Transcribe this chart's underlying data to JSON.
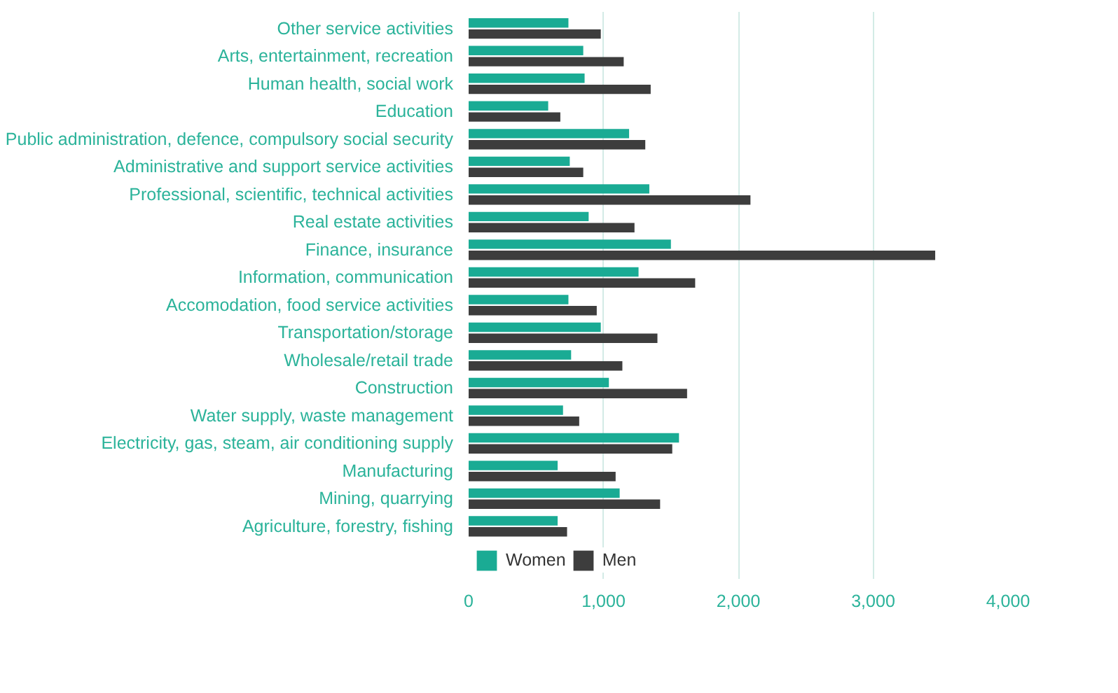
{
  "chart_data": {
    "type": "bar",
    "orientation": "horizontal",
    "categories": [
      "Other service activities",
      "Arts, entertainment, recreation",
      "Human health, social work",
      "Education",
      "Public administration, defence, compulsory social security",
      "Administrative and support service activities",
      "Professional, scientific, technical activities",
      "Real estate activities",
      "Finance, insurance",
      "Information, communication",
      "Accomodation, food service activities",
      "Transportation/storage",
      "Wholesale/retail trade",
      "Construction",
      "Water supply, waste management",
      "Electricity, gas, steam, air conditioning supply",
      "Manufacturing",
      "Mining, quarrying",
      "Agriculture, forestry, fishing"
    ],
    "series": [
      {
        "name": "Women",
        "color": "#1aab94",
        "values": [
          740,
          850,
          860,
          590,
          1190,
          750,
          1340,
          890,
          1500,
          1260,
          740,
          980,
          760,
          1040,
          700,
          1560,
          660,
          1120,
          660
        ]
      },
      {
        "name": "Men",
        "color": "#3d3d3d",
        "values": [
          980,
          1150,
          1350,
          680,
          1310,
          850,
          2090,
          1230,
          3460,
          1680,
          950,
          1400,
          1140,
          1620,
          820,
          1510,
          1090,
          1420,
          730
        ]
      }
    ],
    "xlim": [
      0,
      4000
    ],
    "xticks": [
      0,
      {
        "value": 1000,
        "label": "1,000"
      },
      {
        "value": 2000,
        "label": "2,000"
      },
      {
        "value": 3000,
        "label": "3,000"
      },
      {
        "value": 4000,
        "label": "4,000"
      }
    ],
    "grid": "x",
    "legend": "bottom"
  }
}
